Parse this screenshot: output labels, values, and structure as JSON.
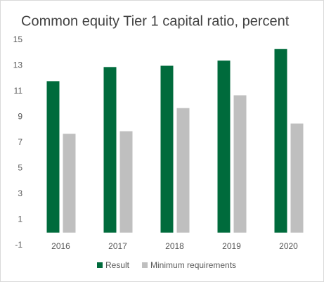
{
  "chart_data": {
    "type": "bar",
    "title": "Common equity Tier 1 capital ratio, percent",
    "categories": [
      "2016",
      "2017",
      "2018",
      "2019",
      "2020"
    ],
    "series": [
      {
        "name": "Result",
        "color": "#006b3c",
        "values": [
          11.8,
          12.9,
          13.0,
          13.4,
          14.3
        ]
      },
      {
        "name": "Minimum requirements",
        "color": "#bfbfbf",
        "values": [
          7.7,
          7.9,
          9.7,
          10.7,
          8.5
        ]
      }
    ],
    "ylim": [
      -1,
      15
    ],
    "yticks": [
      -1,
      1,
      3,
      5,
      7,
      9,
      11,
      13,
      15
    ],
    "grid": false,
    "legend": "bottom"
  }
}
